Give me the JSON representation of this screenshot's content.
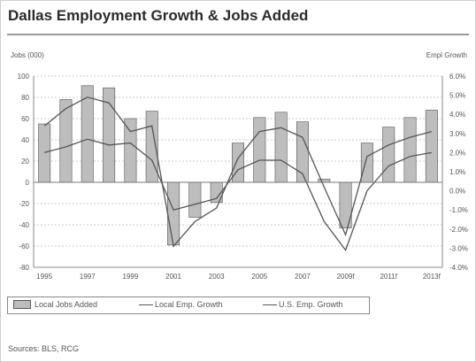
{
  "title": "Dallas Employment Growth & Jobs Added",
  "source": "Sources: BLS, RCG",
  "chart_data": {
    "type": "bar",
    "left_axis_label": "Jobs (000)",
    "right_axis_label": "Empl Growth",
    "left_ylim": [
      -80,
      100
    ],
    "right_ylim": [
      -4.0,
      6.0
    ],
    "left_ticks": [
      "100",
      "80",
      "60",
      "40",
      "20",
      "0",
      "-20",
      "-40",
      "-60",
      "-80"
    ],
    "right_ticks": [
      "6.0%",
      "5.0%",
      "4.0%",
      "3.0%",
      "2.0%",
      "1.0%",
      "0.0%",
      "-1.0%",
      "-2.0%",
      "-3.0%",
      "-4.0%"
    ],
    "x_tick_labels": [
      "1995",
      "1997",
      "1999",
      "2001",
      "2003",
      "2005",
      "2007",
      "2009f",
      "2011f",
      "2013f"
    ],
    "categories": [
      "1995",
      "1996",
      "1997",
      "1998",
      "1999",
      "2000",
      "2001",
      "2002",
      "2003",
      "2004",
      "2005",
      "2006",
      "2007",
      "2008",
      "2009",
      "2010",
      "2011",
      "2012",
      "2013"
    ],
    "grid": true,
    "series": [
      {
        "name": "Local Jobs Added",
        "kind": "bar",
        "axis": "left",
        "values": [
          55,
          78,
          91,
          89,
          60,
          67,
          -59,
          -33,
          -19,
          37,
          61,
          66,
          57,
          3,
          -43,
          37,
          52,
          61,
          68
        ]
      },
      {
        "name": "Local Emp. Growth",
        "kind": "line",
        "axis": "right",
        "values": [
          3.4,
          4.3,
          4.9,
          4.6,
          3.1,
          3.4,
          -2.9,
          -1.6,
          -0.9,
          1.7,
          3.1,
          3.3,
          2.8,
          0.2,
          -2.3,
          1.8,
          2.4,
          2.8,
          3.1
        ]
      },
      {
        "name": "U.S. Emp. Growth",
        "kind": "line",
        "axis": "right",
        "values": [
          2.0,
          2.3,
          2.7,
          2.4,
          2.5,
          1.6,
          -1.0,
          -0.7,
          -0.4,
          1.1,
          1.6,
          1.6,
          0.9,
          -1.6,
          -3.1,
          0.0,
          1.3,
          1.8,
          2.0
        ]
      }
    ],
    "colors": {
      "bar_fill": "#bdbdbd",
      "bar_stroke": "#555555",
      "line": "#555555",
      "grid": "#bbbbbb",
      "axis": "#888888"
    }
  }
}
